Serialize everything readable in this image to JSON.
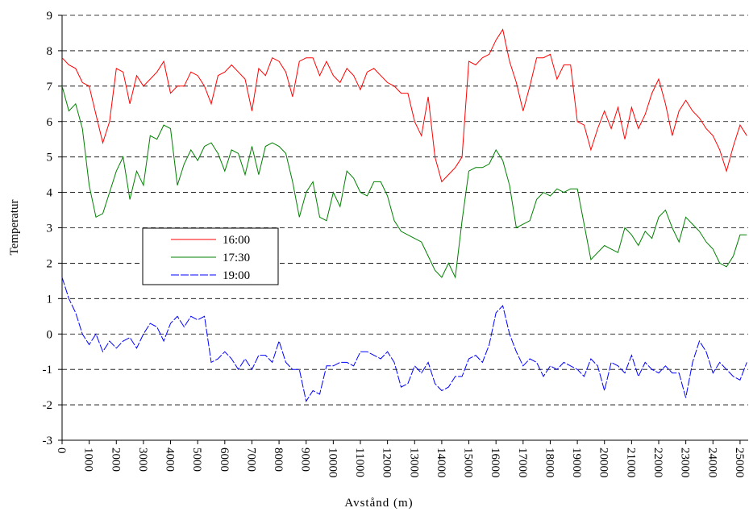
{
  "chart_data": {
    "type": "line",
    "x_label": "Avstånd (m)",
    "y_label": "Temperatur",
    "x": [
      0,
      250,
      500,
      750,
      1000,
      1250,
      1500,
      1750,
      2000,
      2250,
      2500,
      2750,
      3000,
      3250,
      3500,
      3750,
      4000,
      4250,
      4500,
      4750,
      5000,
      5250,
      5500,
      5750,
      6000,
      6250,
      6500,
      6750,
      7000,
      7250,
      7500,
      7750,
      8000,
      8250,
      8500,
      8750,
      9000,
      9250,
      9500,
      9750,
      10000,
      10250,
      10500,
      10750,
      11000,
      11250,
      11500,
      11750,
      12000,
      12250,
      12500,
      12750,
      13000,
      13250,
      13500,
      13750,
      14000,
      14250,
      14500,
      14750,
      15000,
      15250,
      15500,
      15750,
      16000,
      16250,
      16500,
      16750,
      17000,
      17250,
      17500,
      17750,
      18000,
      18250,
      18500,
      18750,
      19000,
      19250,
      19500,
      19750,
      20000,
      20250,
      20500,
      20750,
      21000,
      21250,
      21500,
      21750,
      22000,
      22250,
      22500,
      22750,
      23000,
      23250,
      23500,
      23750,
      24000,
      24250,
      24500,
      24750,
      25000,
      25250
    ],
    "series": [
      {
        "name": "16:00",
        "color": "#ff0000",
        "dash": "none",
        "values": [
          7.8,
          7.6,
          7.5,
          7.1,
          7.0,
          6.2,
          5.4,
          6.0,
          7.5,
          7.4,
          6.5,
          7.3,
          7.0,
          7.2,
          7.4,
          7.7,
          6.8,
          7.0,
          7.0,
          7.4,
          7.3,
          7.0,
          6.5,
          7.3,
          7.4,
          7.6,
          7.4,
          7.2,
          6.3,
          7.5,
          7.3,
          7.8,
          7.7,
          7.4,
          6.7,
          7.7,
          7.8,
          7.8,
          7.3,
          7.7,
          7.3,
          7.1,
          7.5,
          7.3,
          6.9,
          7.4,
          7.5,
          7.3,
          7.1,
          7.0,
          6.8,
          6.8,
          6.0,
          5.6,
          6.7,
          5.0,
          4.3,
          4.5,
          4.7,
          5.0,
          7.7,
          7.6,
          7.8,
          7.9,
          8.3,
          8.6,
          7.7,
          7.1,
          6.3,
          7.0,
          7.8,
          7.8,
          7.9,
          7.2,
          7.6,
          7.6,
          6.0,
          5.9,
          5.2,
          5.8,
          6.3,
          5.8,
          6.4,
          5.5,
          6.4,
          5.8,
          6.2,
          6.8,
          7.2,
          6.5,
          5.6,
          6.3,
          6.6,
          6.3,
          6.1,
          5.8,
          5.6,
          5.2,
          4.6,
          5.3,
          5.9,
          5.6
        ]
      },
      {
        "name": "17:30",
        "color": "#008000",
        "dash": "none",
        "values": [
          7.0,
          6.3,
          6.5,
          5.8,
          4.2,
          3.3,
          3.4,
          4.0,
          4.6,
          5.0,
          3.8,
          4.6,
          4.2,
          5.6,
          5.5,
          5.9,
          5.8,
          4.2,
          4.8,
          5.2,
          4.9,
          5.3,
          5.4,
          5.1,
          4.6,
          5.2,
          5.1,
          4.5,
          5.3,
          4.5,
          5.3,
          5.4,
          5.3,
          5.1,
          4.3,
          3.3,
          4.0,
          4.3,
          3.3,
          3.2,
          4.0,
          3.6,
          4.6,
          4.4,
          4.0,
          3.9,
          4.3,
          4.3,
          3.9,
          3.2,
          2.9,
          2.8,
          2.7,
          2.6,
          2.2,
          1.8,
          1.6,
          2.0,
          1.6,
          3.2,
          4.6,
          4.7,
          4.7,
          4.8,
          5.2,
          4.9,
          4.2,
          3.0,
          3.1,
          3.2,
          3.8,
          4.0,
          3.9,
          4.1,
          4.0,
          4.1,
          4.1,
          3.1,
          2.1,
          2.3,
          2.5,
          2.4,
          2.3,
          3.0,
          2.8,
          2.5,
          2.9,
          2.7,
          3.3,
          3.5,
          3.0,
          2.6,
          3.3,
          3.1,
          2.9,
          2.6,
          2.4,
          2.0,
          1.9,
          2.2,
          2.8,
          2.8
        ]
      },
      {
        "name": "19:00",
        "color": "#0000ff",
        "dash": "10,2",
        "values": [
          1.6,
          1.0,
          0.6,
          0.0,
          -0.3,
          0.0,
          -0.5,
          -0.2,
          -0.4,
          -0.2,
          -0.1,
          -0.4,
          0.0,
          0.3,
          0.2,
          -0.2,
          0.3,
          0.5,
          0.2,
          0.5,
          0.4,
          0.5,
          -0.8,
          -0.7,
          -0.5,
          -0.7,
          -1.0,
          -0.7,
          -1.0,
          -0.6,
          -0.6,
          -0.8,
          -0.2,
          -0.8,
          -1.0,
          -1.0,
          -1.9,
          -1.6,
          -1.7,
          -0.9,
          -0.9,
          -0.8,
          -0.8,
          -0.9,
          -0.5,
          -0.5,
          -0.6,
          -0.7,
          -0.5,
          -0.8,
          -1.5,
          -1.4,
          -0.9,
          -1.1,
          -0.8,
          -1.4,
          -1.6,
          -1.5,
          -1.2,
          -1.2,
          -0.7,
          -0.6,
          -0.8,
          -0.3,
          0.6,
          0.8,
          0.0,
          -0.5,
          -0.9,
          -0.7,
          -0.8,
          -1.2,
          -0.9,
          -1.0,
          -0.8,
          -0.9,
          -1.0,
          -1.2,
          -0.7,
          -0.9,
          -1.6,
          -0.8,
          -0.9,
          -1.1,
          -0.6,
          -1.2,
          -0.8,
          -1.0,
          -1.1,
          -0.9,
          -1.1,
          -1.1,
          -1.8,
          -0.8,
          -0.2,
          -0.5,
          -1.1,
          -0.8,
          -1.0,
          -1.2,
          -1.3,
          -0.8
        ]
      }
    ],
    "xlim": [
      0,
      25300
    ],
    "ylim": [
      -3,
      9
    ],
    "xticks": [
      0,
      1000,
      2000,
      3000,
      4000,
      5000,
      6000,
      7000,
      8000,
      9000,
      10000,
      11000,
      12000,
      13000,
      14000,
      15000,
      16000,
      17000,
      18000,
      19000,
      20000,
      21000,
      22000,
      23000,
      24000,
      25000
    ],
    "yticks": [
      -3,
      -2,
      -1,
      0,
      1,
      2,
      3,
      4,
      5,
      6,
      7,
      8,
      9
    ],
    "grid": true
  }
}
